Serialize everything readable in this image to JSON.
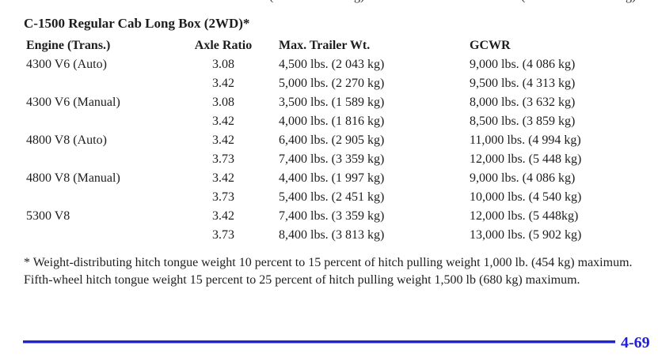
{
  "page": {
    "title": "C-1500 Regular Cab Long Box (2WD)*",
    "page_number": "4-69",
    "accent_color": "#2121dd"
  },
  "top_fragments": [
    "(",
    "g)",
    "(",
    "g)"
  ],
  "table": {
    "columns": [
      "Engine (Trans.)",
      "Axle Ratio",
      "Max. Trailer Wt.",
      "GCWR"
    ],
    "rows": [
      {
        "engine": "4300 V6 (Auto)",
        "axle": "3.08",
        "trailer": "4,500 lbs. (2 043 kg)",
        "gcwr": "9,000 lbs. (4 086 kg)"
      },
      {
        "engine": "",
        "axle": "3.42",
        "trailer": "5,000 lbs. (2 270 kg)",
        "gcwr": "9,500 lbs. (4 313 kg)"
      },
      {
        "engine": "4300 V6 (Manual)",
        "axle": "3.08",
        "trailer": "3,500 lbs. (1 589 kg)",
        "gcwr": "8,000 lbs. (3 632 kg)"
      },
      {
        "engine": "",
        "axle": "3.42",
        "trailer": "4,000 lbs. (1 816 kg)",
        "gcwr": "8,500 lbs. (3 859 kg)"
      },
      {
        "engine": "4800 V8 (Auto)",
        "axle": "3.42",
        "trailer": "6,400 lbs. (2 905 kg)",
        "gcwr": "11,000 lbs. (4 994 kg)"
      },
      {
        "engine": "",
        "axle": "3.73",
        "trailer": "7,400 lbs. (3 359 kg)",
        "gcwr": "12,000 lbs. (5 448 kg)"
      },
      {
        "engine": "4800 V8 (Manual)",
        "axle": "3.42",
        "trailer": "4,400 lbs. (1 997 kg)",
        "gcwr": "9,000 lbs. (4 086 kg)"
      },
      {
        "engine": "",
        "axle": "3.73",
        "trailer": "5,400 lbs. (2 451 kg)",
        "gcwr": "10,000 lbs. (4 540 kg)"
      },
      {
        "engine": "5300 V8",
        "axle": "3.42",
        "trailer": "7,400 lbs. (3 359 kg)",
        "gcwr": "12,000 lbs. (5 448kg)"
      },
      {
        "engine": "",
        "axle": "3.73",
        "trailer": "8,400 lbs. (3 813 kg)",
        "gcwr": "13,000 lbs. (5 902 kg)"
      }
    ]
  },
  "footnote": {
    "line1": "* Weight-distributing hitch tongue weight 10 percent to 15 percent of hitch pulling weight 1,000 lb. (454 kg) maximum.",
    "line2": "Fifth-wheel hitch tongue weight 15 percent to 25 percent of hitch pulling weight 1,500 lb (680 kg) maximum."
  }
}
